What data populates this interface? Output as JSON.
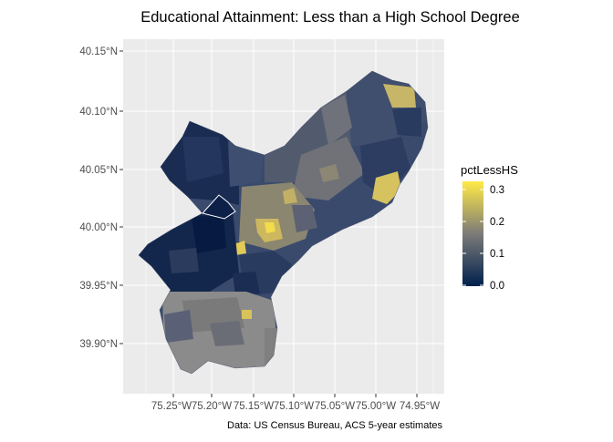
{
  "title": "Educational Attainment: Less than a High School Degree",
  "caption": "Data: US Census Bureau, ACS 5-year estimates",
  "colors": {
    "panel_bg": "#ebebeb",
    "grid": "#ffffff",
    "na_fill": "#808080",
    "scale_low": "#00204d",
    "scale_mid": "#7c7b78",
    "scale_high": "#ffea46"
  },
  "axes": {
    "y_ticks": [
      "40.15°N",
      "40.10°N",
      "40.05°N",
      "40.00°N",
      "39.95°N",
      "39.90°N"
    ],
    "x_ticks": [
      "75.25°W",
      "75.20°W",
      "75.15°W",
      "75.10°W",
      "75.05°W",
      "75.00°W",
      "74.95°W"
    ]
  },
  "legend": {
    "title": "pctLessHS",
    "labels": [
      "0.3",
      "0.2",
      "0.1",
      "0.0"
    ],
    "range": [
      0,
      0.33
    ]
  }
}
